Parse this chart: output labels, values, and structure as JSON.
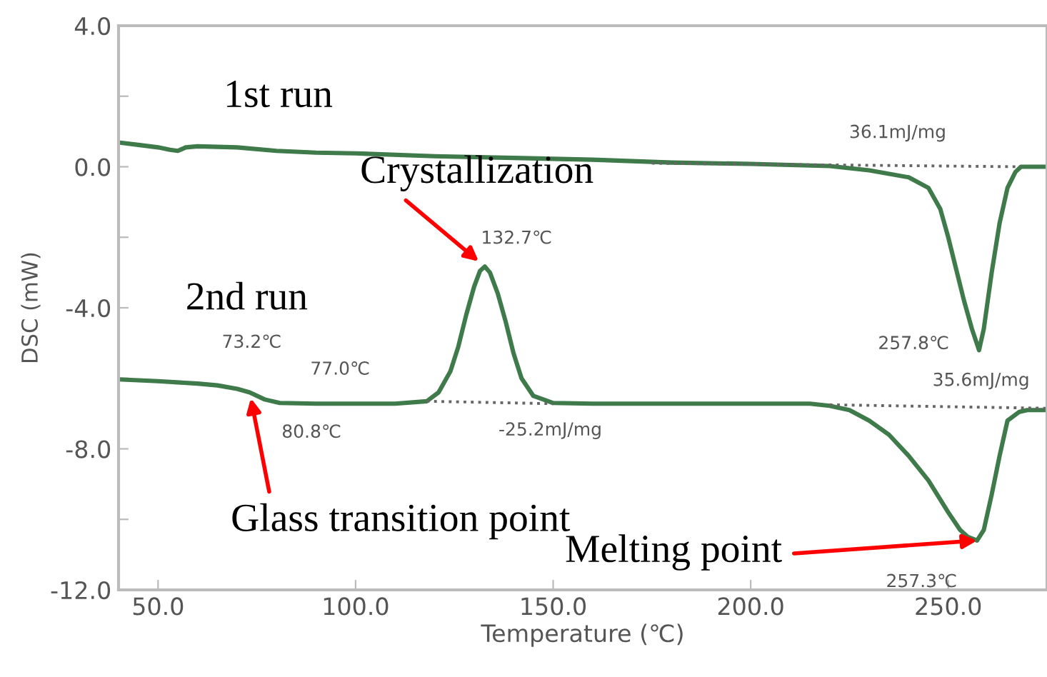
{
  "chart_data": {
    "type": "line",
    "xlabel": "Temperature (℃)",
    "ylabel": "DSC (mW)",
    "xlim": [
      40,
      275
    ],
    "ylim": [
      -12,
      4
    ],
    "xticks": [
      {
        "value": 50,
        "label": "50.0"
      },
      {
        "value": 100,
        "label": "100.0"
      },
      {
        "value": 150,
        "label": "150.0"
      },
      {
        "value": 200,
        "label": "200.0"
      },
      {
        "value": 250,
        "label": "250.0"
      }
    ],
    "yticks": [
      {
        "value": 4,
        "label": "4.0"
      },
      {
        "value": 2,
        "label": null
      },
      {
        "value": 0,
        "label": "0.0"
      },
      {
        "value": -2,
        "label": null
      },
      {
        "value": -4,
        "label": "-4.0"
      },
      {
        "value": -6,
        "label": null
      },
      {
        "value": -8,
        "label": "-8.0"
      },
      {
        "value": -10,
        "label": null
      },
      {
        "value": -12,
        "label": "-12.0"
      }
    ],
    "grid": false,
    "legend": false,
    "series": [
      {
        "color": "#3f7a4a",
        "line_style": "solid",
        "x": [
          40,
          45,
          50,
          53,
          55,
          57,
          60,
          70,
          80,
          90,
          100,
          120,
          140,
          160,
          180,
          200,
          210,
          220,
          230,
          240,
          245,
          248,
          250,
          252,
          254,
          256,
          257.8,
          259,
          261,
          263,
          265,
          267,
          268.4,
          270,
          275
        ],
        "values": [
          0.69,
          0.62,
          0.55,
          0.48,
          0.45,
          0.55,
          0.58,
          0.55,
          0.45,
          0.4,
          0.38,
          0.3,
          0.25,
          0.2,
          0.12,
          0.08,
          0.05,
          0.02,
          -0.1,
          -0.3,
          -0.6,
          -1.2,
          -2.0,
          -2.9,
          -3.8,
          -4.6,
          -5.2,
          -4.6,
          -3.0,
          -1.6,
          -0.6,
          -0.15,
          0.0,
          0.0,
          0.0
        ]
      },
      {
        "color": "#3f7a4a",
        "line_style": "solid",
        "x": [
          40,
          50,
          60,
          65,
          70,
          73.2,
          77,
          80.8,
          90,
          100,
          110,
          118,
          121,
          124,
          126,
          128,
          130,
          131.5,
          132.7,
          134,
          136,
          138,
          140,
          142,
          145,
          150,
          160,
          180,
          200,
          215,
          220,
          225,
          230,
          235,
          240,
          245,
          250,
          253,
          255,
          257.3,
          259,
          261,
          263,
          265,
          268,
          270,
          275
        ],
        "values": [
          -6.03,
          -6.08,
          -6.15,
          -6.2,
          -6.3,
          -6.4,
          -6.6,
          -6.7,
          -6.72,
          -6.72,
          -6.72,
          -6.65,
          -6.4,
          -5.8,
          -5.1,
          -4.2,
          -3.4,
          -2.95,
          -2.83,
          -3.0,
          -3.6,
          -4.4,
          -5.3,
          -6.0,
          -6.5,
          -6.7,
          -6.72,
          -6.72,
          -6.72,
          -6.72,
          -6.78,
          -6.9,
          -7.2,
          -7.6,
          -8.2,
          -8.9,
          -9.8,
          -10.3,
          -10.5,
          -10.6,
          -10.3,
          -9.3,
          -8.2,
          -7.2,
          -6.95,
          -6.9,
          -6.9
        ]
      },
      {
        "color": "#666666",
        "line_style": "dotted",
        "x": [
          175,
          268.4
        ],
        "values": [
          0.1,
          0.0
        ]
      },
      {
        "color": "#666666",
        "line_style": "dotted",
        "x": [
          118,
          150
        ],
        "values": [
          -6.65,
          -6.72
        ]
      },
      {
        "color": "#666666",
        "line_style": "dotted",
        "x": [
          220,
          275
        ],
        "values": [
          -6.75,
          -6.85
        ]
      }
    ],
    "annotations": [
      "1st run",
      "2nd run",
      {
        "text": "Crystallization",
        "x": 132.7,
        "y": -2.83
      },
      {
        "text": "132.7℃",
        "x": 132.7,
        "y": -2.83
      },
      {
        "text": "73.2℃",
        "x": 73.2,
        "y": -6.4
      },
      {
        "text": "77.0℃",
        "x": 77.0,
        "y": -6.6
      },
      {
        "text": "80.8℃",
        "x": 80.8,
        "y": -6.7
      },
      {
        "text": "Glass transition point",
        "x": 73.2,
        "y": -6.4
      },
      {
        "text": "-25.2mJ/mg",
        "x": 132.7,
        "y": -6.75
      },
      {
        "text": "36.1mJ/mg",
        "x": 257.8,
        "y": 0.0
      },
      {
        "text": "257.8℃",
        "x": 257.8,
        "y": -5.2
      },
      {
        "text": "35.6mJ/mg",
        "x": 257.3,
        "y": -6.75
      },
      {
        "text": "257.3℃",
        "x": 257.3,
        "y": -10.6
      },
      {
        "text": "Melting point",
        "x": 257.3,
        "y": -10.6
      }
    ]
  }
}
